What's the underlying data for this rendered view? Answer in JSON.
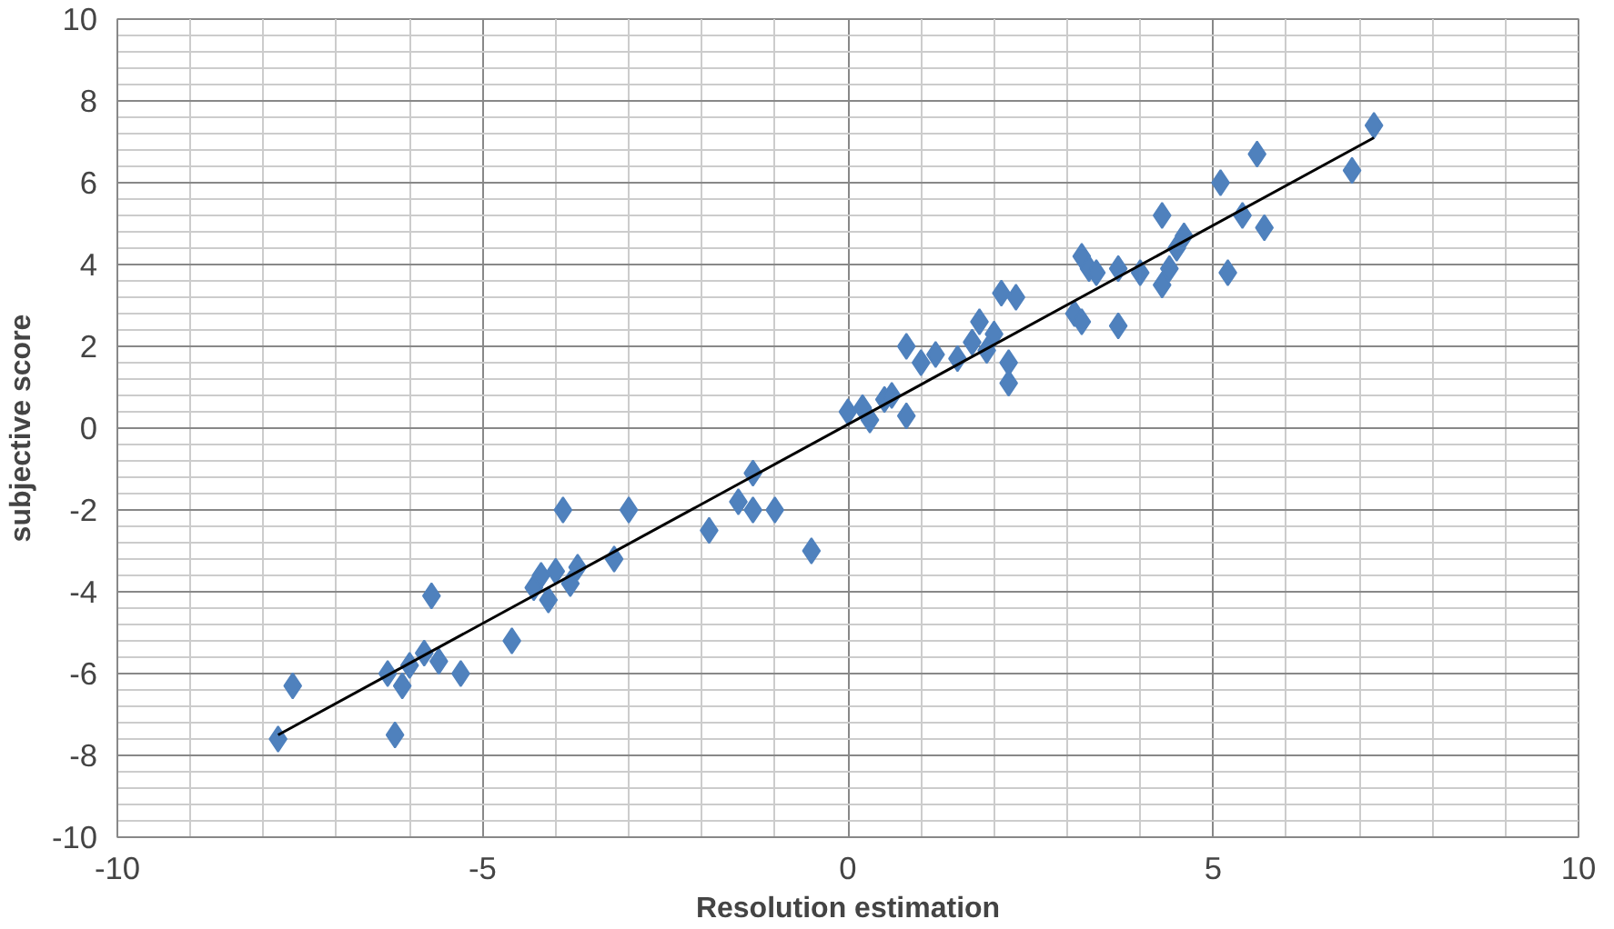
{
  "chart_data": {
    "type": "scatter",
    "xlabel": "Resolution estimation",
    "ylabel": "subjective score",
    "xlim": [
      -10,
      10
    ],
    "ylim": [
      -10,
      10
    ],
    "xticks": [
      -10,
      -5,
      0,
      5,
      10
    ],
    "yticks": [
      -10,
      -8,
      -6,
      -4,
      -2,
      0,
      2,
      4,
      6,
      8,
      10
    ],
    "grid": true,
    "series": [
      {
        "color": "#4f81bd",
        "marker": "diamond",
        "x": [
          -7.8,
          -7.6,
          -6.3,
          -6.2,
          -6.1,
          -6.0,
          -5.8,
          -5.7,
          -5.6,
          -5.3,
          -4.6,
          -4.3,
          -4.2,
          -4.1,
          -4.0,
          -3.9,
          -3.8,
          -3.7,
          -3.2,
          -3.0,
          -1.9,
          -1.5,
          -1.3,
          -1.3,
          -1.0,
          -0.5,
          0.0,
          0.2,
          0.3,
          0.5,
          0.6,
          0.8,
          0.8,
          1.0,
          1.2,
          1.5,
          1.7,
          1.8,
          1.9,
          2.0,
          2.1,
          2.2,
          2.2,
          2.3,
          3.1,
          3.2,
          3.2,
          3.3,
          3.4,
          3.7,
          3.7,
          4.0,
          4.3,
          4.3,
          4.4,
          4.5,
          4.6,
          5.1,
          5.2,
          5.4,
          5.6,
          5.7,
          6.9,
          7.2
        ],
        "values": [
          -7.6,
          -6.3,
          -6.0,
          -7.5,
          -6.3,
          -5.8,
          -5.5,
          -4.1,
          -5.7,
          -6.0,
          -5.2,
          -3.9,
          -3.6,
          -4.2,
          -3.5,
          -2.0,
          -3.8,
          -3.4,
          -3.2,
          -2.0,
          -2.5,
          -1.8,
          -1.1,
          -2.0,
          -2.0,
          -3.0,
          0.4,
          0.5,
          0.2,
          0.7,
          0.8,
          2.0,
          0.3,
          1.6,
          1.8,
          1.7,
          2.1,
          2.6,
          1.9,
          2.3,
          3.3,
          1.6,
          1.1,
          3.2,
          2.8,
          4.2,
          2.6,
          3.9,
          3.8,
          2.5,
          3.9,
          3.8,
          3.5,
          5.2,
          3.9,
          4.4,
          4.7,
          6.0,
          3.8,
          5.2,
          6.7,
          4.9,
          6.3,
          7.4
        ]
      },
      {
        "type": "line",
        "color": "#000000",
        "x": [
          -7.8,
          7.2
        ],
        "values": [
          -7.5,
          7.1
        ]
      }
    ]
  }
}
